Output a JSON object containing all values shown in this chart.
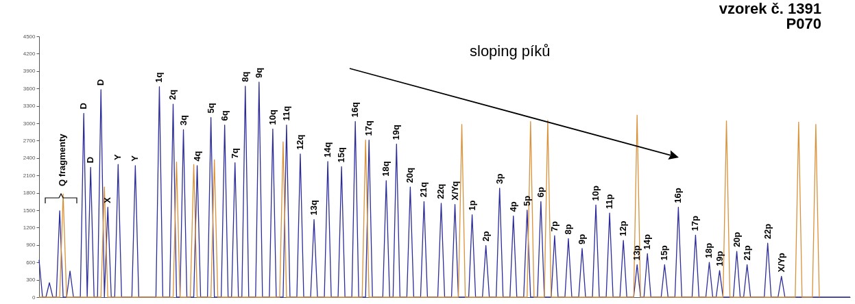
{
  "chart_data": {
    "type": "line",
    "title": "vzorek č. 1391",
    "subtitle": "P070",
    "categories": [
      null,
      null,
      null,
      null,
      null,
      null,
      null,
      null,
      null,
      null,
      null,
      null,
      null,
      null,
      null,
      null,
      null,
      null,
      null,
      null,
      null,
      null,
      null,
      null,
      null,
      null,
      null,
      null,
      null,
      null,
      null,
      null,
      null,
      null,
      null,
      null,
      null,
      null,
      null,
      null,
      null,
      null,
      null,
      null,
      null,
      null,
      null,
      null,
      null,
      null,
      null,
      null,
      null,
      null,
      null,
      null,
      null,
      null,
      null,
      null,
      null,
      null,
      null,
      null,
      null,
      null,
      null,
      null,
      null,
      null,
      null,
      null,
      null,
      null,
      null,
      null,
      null,
      null,
      null,
      null,
      null,
      null,
      null,
      null,
      null,
      null,
      null,
      null,
      null,
      null,
      null,
      null,
      null,
      null,
      null,
      null,
      null,
      null,
      null,
      null,
      null,
      null,
      null,
      null,
      null,
      null,
      null,
      null,
      null,
      null,
      null,
      null,
      null,
      null,
      null,
      null,
      null,
      null,
      null,
      null,
      null,
      null,
      null,
      null,
      null,
      null,
      null,
      null,
      null,
      null,
      null,
      null,
      null,
      null,
      null,
      null,
      null,
      null,
      null,
      null,
      null,
      null,
      null,
      null,
      null,
      null,
      null,
      null,
      null,
      null,
      null,
      null,
      null,
      null,
      null,
      null,
      null,
      null,
      null,
      null,
      null,
      null,
      null,
      null,
      null,
      null,
      null,
      null,
      null,
      null,
      null,
      null,
      null,
      null,
      null,
      null,
      null,
      null,
      null,
      null,
      null,
      null,
      null,
      null,
      null,
      null,
      null,
      null,
      null,
      null,
      null,
      null,
      null,
      null,
      null,
      null,
      null,
      null,
      null,
      null,
      null,
      null,
      null,
      null,
      null,
      null,
      null,
      null,
      null,
      null,
      null,
      null,
      null,
      null,
      null,
      null,
      null,
      null,
      null,
      null,
      null,
      null,
      null,
      null,
      null,
      null,
      null,
      null,
      null,
      null,
      null,
      null,
      null,
      null,
      null,
      null,
      null
    ],
    "series": [
      {
        "color": "#2b2b9a",
        "values": [
          640,
          0,
          0,
          250,
          0,
          0,
          1490,
          0,
          0,
          450,
          0,
          0,
          0,
          3170,
          0,
          2240,
          0,
          0,
          3580,
          0,
          1550,
          0,
          0,
          2290,
          0,
          0,
          0,
          0,
          2270,
          0,
          0,
          0,
          0,
          0,
          0,
          3630,
          0,
          0,
          0,
          3330,
          0,
          0,
          2890,
          0,
          0,
          0,
          2270,
          0,
          0,
          0,
          3100,
          0,
          0,
          0,
          2970,
          0,
          0,
          2320,
          0,
          0,
          3640,
          0,
          0,
          0,
          3710,
          0,
          0,
          0,
          2900,
          0,
          0,
          0,
          2970,
          0,
          0,
          0,
          2470,
          0,
          0,
          0,
          1340,
          0,
          0,
          0,
          2340,
          0,
          0,
          0,
          2250,
          0,
          0,
          0,
          3030,
          0,
          0,
          0,
          2710,
          0,
          0,
          0,
          0,
          2010,
          0,
          0,
          2640,
          0,
          0,
          0,
          1900,
          0,
          0,
          0,
          1650,
          0,
          0,
          0,
          0,
          1620,
          0,
          0,
          0,
          1600,
          0,
          0,
          0,
          0,
          1420,
          0,
          0,
          0,
          890,
          0,
          0,
          0,
          1880,
          0,
          0,
          0,
          1400,
          0,
          0,
          0,
          1500,
          0,
          0,
          0,
          1650,
          0,
          0,
          0,
          1060,
          0,
          0,
          0,
          1010,
          0,
          0,
          0,
          840,
          0,
          0,
          0,
          1590,
          0,
          0,
          0,
          1450,
          0,
          0,
          0,
          980,
          0,
          0,
          0,
          560,
          0,
          0,
          750,
          0,
          0,
          0,
          0,
          560,
          0,
          0,
          0,
          1550,
          0,
          0,
          0,
          0,
          1070,
          0,
          0,
          0,
          600,
          0,
          0,
          460,
          0,
          0,
          0,
          0,
          790,
          0,
          0,
          560,
          0,
          0,
          0,
          0,
          0,
          930,
          0,
          0,
          0,
          360,
          0,
          0,
          0,
          0,
          0,
          0,
          0,
          0,
          0,
          0,
          0,
          0,
          0,
          0,
          0,
          0,
          0,
          0,
          0,
          0
        ]
      },
      {
        "color": "#d9913a",
        "values": [
          0,
          0,
          0,
          0,
          0,
          0,
          0,
          1780,
          0,
          0,
          0,
          0,
          0,
          0,
          0,
          0,
          0,
          0,
          0,
          1900,
          0,
          0,
          0,
          0,
          0,
          0,
          0,
          0,
          0,
          0,
          0,
          0,
          0,
          0,
          0,
          0,
          0,
          0,
          0,
          0,
          2330,
          0,
          0,
          0,
          0,
          2290,
          0,
          0,
          0,
          0,
          0,
          2370,
          0,
          0,
          0,
          0,
          0,
          0,
          0,
          0,
          0,
          0,
          0,
          0,
          0,
          0,
          0,
          0,
          0,
          0,
          0,
          2680,
          0,
          0,
          0,
          0,
          0,
          0,
          0,
          0,
          0,
          0,
          0,
          0,
          0,
          0,
          0,
          0,
          0,
          0,
          0,
          0,
          0,
          0,
          0,
          2710,
          0,
          0,
          0,
          0,
          0,
          0,
          0,
          0,
          0,
          0,
          0,
          0,
          0,
          0,
          0,
          0,
          0,
          0,
          0,
          0,
          0,
          0,
          0,
          0,
          0,
          0,
          0,
          2980,
          0,
          0,
          0,
          0,
          0,
          0,
          0,
          0,
          0,
          0,
          0,
          0,
          0,
          0,
          0,
          0,
          0,
          0,
          0,
          3030,
          0,
          0,
          0,
          0,
          3050,
          0,
          0,
          0,
          0,
          0,
          0,
          0,
          0,
          0,
          0,
          0,
          0,
          0,
          0,
          0,
          0,
          0,
          0,
          0,
          0,
          0,
          0,
          0,
          0,
          0,
          3140,
          0,
          0,
          0,
          0,
          0,
          0,
          0,
          0,
          0,
          0,
          0,
          0,
          0,
          0,
          0,
          0,
          0,
          0,
          0,
          0,
          0,
          0,
          0,
          0,
          0,
          3040,
          0,
          0,
          0,
          0,
          0,
          0,
          0,
          0,
          0,
          0,
          0,
          0,
          0,
          0,
          0,
          0,
          0,
          0,
          0,
          0,
          3020,
          0,
          0,
          0,
          0,
          2980,
          0,
          null,
          null,
          null,
          null,
          null,
          null,
          null,
          null,
          null
        ]
      }
    ],
    "ylim": [
      0,
      4500
    ],
    "yticks": [
      0,
      300,
      600,
      900,
      1200,
      1500,
      1800,
      2100,
      2400,
      2700,
      3000,
      3300,
      3600,
      3900,
      4200,
      4500
    ],
    "tick_labels": "y",
    "annotations": [
      "Q fragmenty",
      "sloping píků",
      {
        "text": "D",
        "y": 3170
      },
      {
        "text": "D",
        "y": 2240
      },
      {
        "text": "D",
        "y": 3580
      },
      {
        "text": "X",
        "y": 1550
      },
      {
        "text": "Y",
        "y": 2290
      },
      {
        "text": "Y",
        "y": 2270
      },
      {
        "text": "1q",
        "y": 3630
      },
      {
        "text": "2q",
        "y": 3330
      },
      {
        "text": "3q",
        "y": 2890
      },
      {
        "text": "4q",
        "y": 2270
      },
      {
        "text": "5q",
        "y": 3100
      },
      {
        "text": "6q",
        "y": 2970
      },
      {
        "text": "7q",
        "y": 2320
      },
      {
        "text": "8q",
        "y": 3640
      },
      {
        "text": "9q",
        "y": 3710
      },
      {
        "text": "10q",
        "y": 2900
      },
      {
        "text": "11q",
        "y": 2970
      },
      {
        "text": "12q",
        "y": 2470
      },
      {
        "text": "13q",
        "y": 1340
      },
      {
        "text": "14q",
        "y": 2340
      },
      {
        "text": "15q",
        "y": 2250
      },
      {
        "text": "16q",
        "y": 3030
      },
      {
        "text": "17q",
        "y": 2710
      },
      {
        "text": "18q",
        "y": 2010
      },
      {
        "text": "19q",
        "y": 2640
      },
      {
        "text": "20q",
        "y": 1900
      },
      {
        "text": "21q",
        "y": 1650
      },
      {
        "text": "22q",
        "y": 1620
      },
      {
        "text": "X/Yq",
        "y": 1600
      },
      {
        "text": "1p",
        "y": 1420
      },
      {
        "text": "2p",
        "y": 890
      },
      {
        "text": "3p",
        "y": 1880
      },
      {
        "text": "4p",
        "y": 1400
      },
      {
        "text": "5p",
        "y": 1500
      },
      {
        "text": "6p",
        "y": 1650
      },
      {
        "text": "7p",
        "y": 1060
      },
      {
        "text": "8p",
        "y": 1010
      },
      {
        "text": "9p",
        "y": 840
      },
      {
        "text": "10p",
        "y": 1590
      },
      {
        "text": "11p",
        "y": 1450
      },
      {
        "text": "12p",
        "y": 980
      },
      {
        "text": "13p",
        "y": 560
      },
      {
        "text": "14p",
        "y": 750
      },
      {
        "text": "15p",
        "y": 560
      },
      {
        "text": "16p",
        "y": 1550
      },
      {
        "text": "17p",
        "y": 1070
      },
      {
        "text": "18p",
        "y": 600
      },
      {
        "text": "19p",
        "y": 460
      },
      {
        "text": "20p",
        "y": 790
      },
      {
        "text": "21p",
        "y": 560
      },
      {
        "text": "22p",
        "y": 930
      },
      {
        "text": "X/Yp",
        "y": 360
      }
    ]
  }
}
